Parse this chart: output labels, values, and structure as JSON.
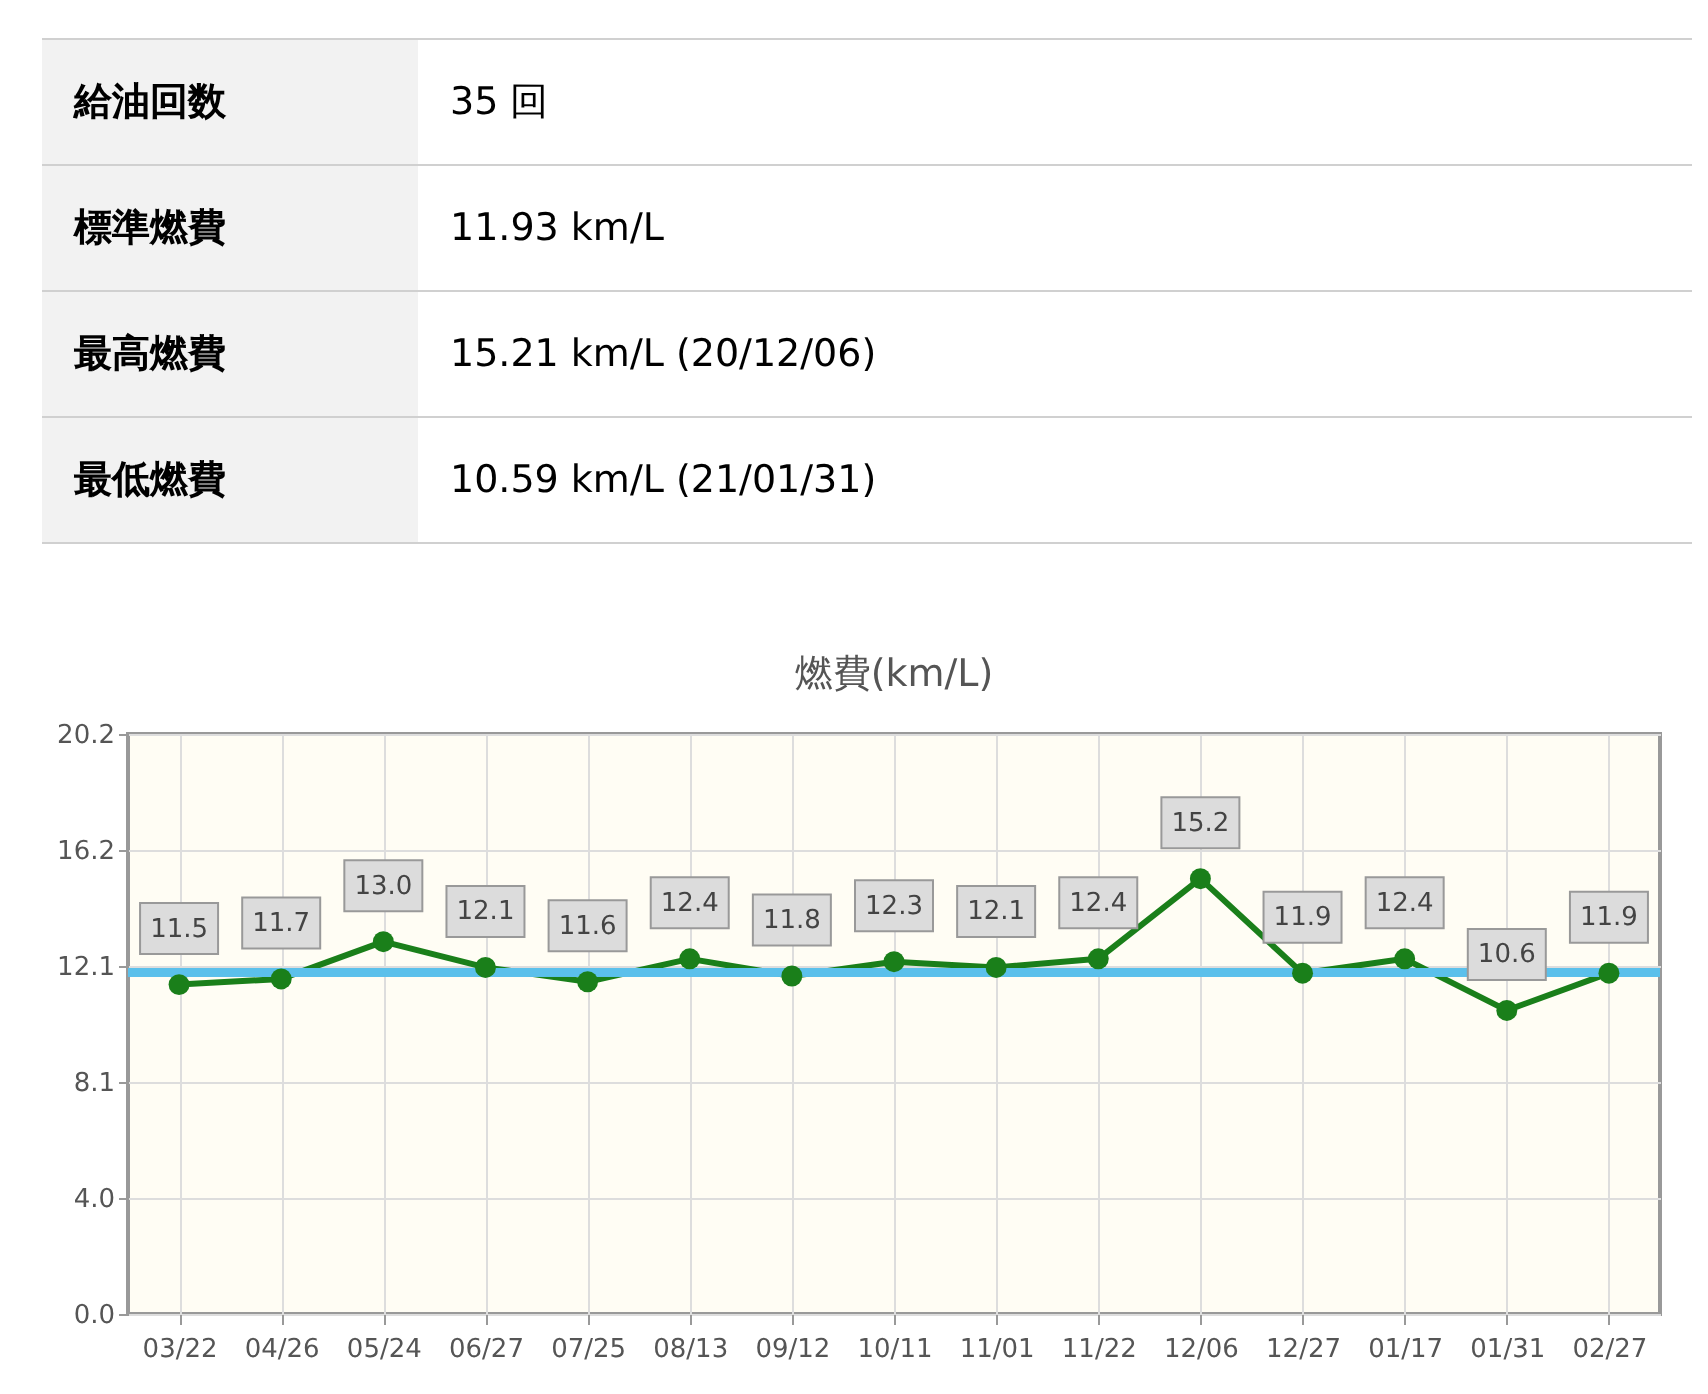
{
  "chart_data": [
    {
      "type": "other",
      "categories": [
        "給油回数",
        "標準燃費",
        "最高燃費",
        "最低燃費"
      ],
      "value_labels": [
        "35 回",
        "11.93 km/L",
        "15.21 km/L (20/12/06)",
        "10.59 km/L (21/01/31)"
      ]
    },
    {
      "type": "line",
      "title": "燃費(km/L)",
      "categories": [
        "03/22",
        "04/26",
        "05/24",
        "06/27",
        "07/25",
        "08/13",
        "09/12",
        "10/11",
        "11/01",
        "11/22",
        "12/06",
        "12/27",
        "01/17",
        "01/31",
        "02/27"
      ],
      "series": [
        {
          "color": "#1a7f1a",
          "values": [
            11.5,
            11.7,
            13.0,
            12.1,
            11.6,
            12.4,
            11.8,
            12.3,
            12.1,
            12.4,
            15.2,
            11.9,
            12.4,
            10.6,
            11.9
          ],
          "value_labels": [
            "11.5",
            "11.7",
            "13.0",
            "12.1",
            "11.6",
            "12.4",
            "11.8",
            "12.3",
            "12.1",
            "12.4",
            "15.2",
            "11.9",
            "12.4",
            "10.6",
            "11.9"
          ]
        }
      ],
      "ylim": [
        0,
        20.25
      ],
      "yticks": [
        {
          "value": 0,
          "label": "0.0"
        },
        {
          "value": 4.05,
          "label": "4.0"
        },
        {
          "value": 8.1,
          "label": "8.1"
        },
        {
          "value": 12.15,
          "label": "12.1"
        },
        {
          "value": 16.2,
          "label": "16.2"
        },
        {
          "value": 20.25,
          "label": "20.2"
        }
      ],
      "ref_lines": [
        {
          "axis": "y",
          "value": 11.93,
          "color": "#5bc0eb"
        }
      ],
      "grid": true,
      "marker": "circle",
      "line_style": "solid"
    }
  ]
}
